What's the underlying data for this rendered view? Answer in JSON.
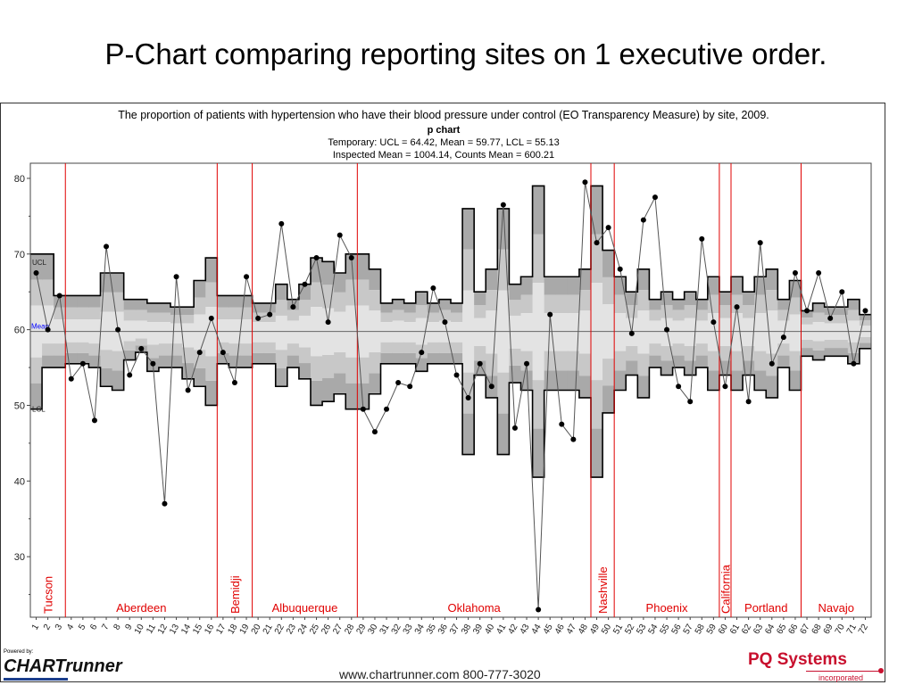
{
  "slide": {
    "title": "P-Chart comparing reporting sites on 1 executive order."
  },
  "chart_data": {
    "type": "line",
    "title": "The proportion of patients with hypertension who have their blood pressure under control (EO Transparency Measure) by site, 2009.",
    "subtitle": "p chart",
    "stats_line1": "Temporary: UCL = 64.42, Mean = 59.77, LCL = 55.13",
    "stats_line2": "Inspected Mean = 1004.14, Counts Mean = 600.21",
    "mean": 59.77,
    "ylim": [
      22,
      82
    ],
    "yticks": [
      30,
      40,
      50,
      60,
      70,
      80
    ],
    "x": [
      1,
      2,
      3,
      4,
      5,
      6,
      7,
      8,
      9,
      10,
      11,
      12,
      13,
      14,
      15,
      16,
      17,
      18,
      19,
      20,
      21,
      22,
      23,
      24,
      25,
      26,
      27,
      28,
      29,
      30,
      31,
      32,
      33,
      34,
      35,
      36,
      37,
      38,
      39,
      40,
      41,
      42,
      43,
      44,
      45,
      46,
      47,
      48,
      49,
      50,
      51,
      52,
      53,
      54,
      55,
      56,
      57,
      58,
      59,
      60,
      61,
      62,
      63,
      64,
      65,
      66,
      67,
      68,
      69,
      70,
      71,
      72
    ],
    "series": [
      {
        "values": [
          67.5,
          60,
          64.5,
          53.5,
          55.5,
          48,
          71,
          60,
          54,
          57.5,
          55.5,
          37,
          67,
          52,
          57,
          61.5,
          57,
          53,
          67,
          61.5,
          62,
          74,
          63,
          66,
          69.5,
          61,
          72.5,
          69.5,
          49.5,
          46.5,
          49.5,
          53,
          52.5,
          57,
          65.5,
          61,
          54,
          51,
          55.5,
          52.5,
          76.5,
          47,
          55.5,
          23,
          62,
          47.5,
          45.5,
          79.5,
          71.5,
          73.5,
          68,
          59.5,
          74.5,
          77.5,
          60,
          52.5,
          50.5,
          72,
          61,
          52.5,
          63,
          50.5,
          71.5,
          55.5,
          59,
          67.5,
          62.5,
          67.5,
          61.5,
          65,
          55.5,
          62.5
        ]
      }
    ],
    "control_limits": {
      "ucl": [
        70,
        70,
        64.5,
        64.5,
        64.5,
        64.5,
        67.5,
        67.5,
        64,
        64,
        63.5,
        63.5,
        63,
        63,
        66.5,
        69.5,
        64.5,
        64.5,
        64.5,
        63.5,
        63.5,
        66,
        64,
        66,
        69.5,
        69,
        67.5,
        70,
        70,
        68,
        63.5,
        64,
        63.5,
        65,
        63.5,
        64,
        63.5,
        76,
        65,
        68,
        76,
        66,
        67,
        79,
        67,
        67,
        67,
        68,
        79,
        70.5,
        67,
        65,
        68,
        64,
        65,
        64,
        65,
        64,
        67,
        65,
        67,
        65,
        67,
        68,
        64,
        66.5,
        62.5,
        63.5,
        63,
        63,
        64,
        62
      ],
      "lcl": [
        49.5,
        55,
        55,
        55.5,
        55.5,
        55,
        52.5,
        52,
        56,
        57,
        54.5,
        55,
        55,
        53.5,
        52.5,
        50,
        55.5,
        55,
        55,
        55.5,
        55.5,
        52.5,
        55,
        53.5,
        50,
        50.5,
        51.5,
        49.5,
        49.5,
        51.5,
        55.5,
        55.5,
        55.5,
        54.5,
        55.5,
        55.5,
        55.5,
        43.5,
        54,
        51,
        43.5,
        53,
        52,
        40.5,
        52,
        52,
        52,
        51,
        40.5,
        49,
        52,
        54,
        51,
        55,
        54,
        55,
        54,
        55,
        52,
        54,
        52,
        54,
        52,
        51,
        55,
        52,
        56.5,
        56,
        56.5,
        56.5,
        55.5,
        57.5
      ]
    },
    "sites": [
      {
        "name": "Tucson",
        "vertical": true
      },
      {
        "name": "Aberdeen",
        "vertical": false
      },
      {
        "name": "Bemidji",
        "vertical": true
      },
      {
        "name": "Albuquerque",
        "vertical": false
      },
      {
        "name": "Oklahoma",
        "vertical": false
      },
      {
        "name": "Nashville",
        "vertical": true
      },
      {
        "name": "Phoenix",
        "vertical": false
      },
      {
        "name": "California",
        "vertical": true
      },
      {
        "name": "Portland",
        "vertical": false
      },
      {
        "name": "Navajo",
        "vertical": false
      }
    ],
    "site_boundaries_after": [
      3,
      16,
      19,
      28,
      48,
      50,
      59,
      60,
      66
    ],
    "inside_labels": {
      "ucl": "UCL",
      "mean": "Mean",
      "lcl": "LCL"
    },
    "colors": {
      "site_line": "#e00000",
      "site_label": "#e00000",
      "mean_label": "#0000ff",
      "point": "#000000"
    }
  },
  "footer": {
    "url": "www.chartrunner.com 800-777-3020",
    "powered_by": "Powered by:",
    "left_logo": "CHARTrunner",
    "right_logo": "PQ Systems",
    "right_logo_sub": "incorporated"
  }
}
